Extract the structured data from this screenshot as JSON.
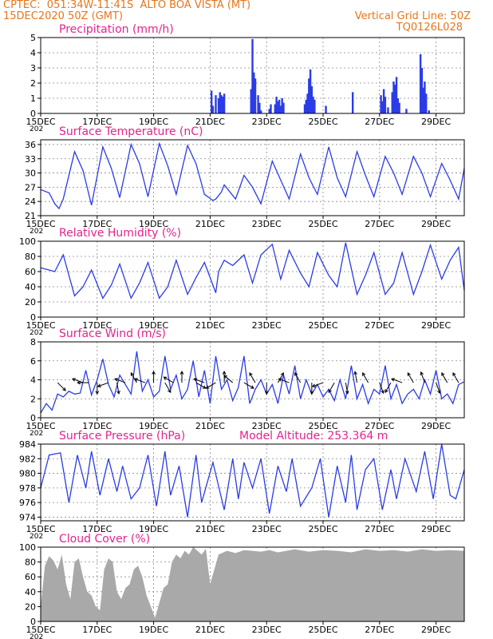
{
  "header": {
    "line1": "CPTEC:  051:34W-11:41S  ALTO BOA VISTA (MT)",
    "line2": "15DEC2020 50Z (GMT)",
    "grid_note": "Vertical Grid Line: 50Z",
    "code": "TQ0126L028",
    "color": "#e8751a"
  },
  "colors": {
    "line": "#2b3ce6",
    "bar": "#2b3ce6",
    "cloud": "#a9a9a9",
    "title": "#e5238b",
    "axis": "#000000"
  },
  "x_axis": {
    "range_days": [
      0,
      15
    ],
    "tick_labels": [
      "15DEC",
      "17DEC",
      "19DEC",
      "21DEC",
      "23DEC",
      "25DEC",
      "27DEC",
      "29DEC"
    ],
    "tick_days": [
      0,
      2,
      4,
      6,
      8,
      10,
      12,
      14
    ],
    "year_fragment": "202"
  },
  "chart_data": [
    {
      "type": "bar",
      "title": "Precipitation (mm/h)",
      "ylim": [
        0,
        5
      ],
      "yticks": [
        "0",
        "1",
        "2",
        "3",
        "4",
        "5"
      ],
      "x_days": [
        6.05,
        6.1,
        6.2,
        6.3,
        6.35,
        6.4,
        6.45,
        6.5,
        7.45,
        7.5,
        7.55,
        7.6,
        7.7,
        7.75,
        7.8,
        8.1,
        8.15,
        8.3,
        8.35,
        8.4,
        8.45,
        8.5,
        8.55,
        8.6,
        9.35,
        9.4,
        9.45,
        9.5,
        9.55,
        9.6,
        9.65,
        9.7,
        10.1,
        11.05,
        12.05,
        12.1,
        12.15,
        12.2,
        12.3,
        12.45,
        12.5,
        12.55,
        12.6,
        12.65,
        12.7,
        12.95,
        13.45,
        13.5,
        13.55,
        13.6,
        13.65,
        13.75
      ],
      "values": [
        1.5,
        0.5,
        1.2,
        1.0,
        1.4,
        1.2,
        1.1,
        1.3,
        1.6,
        4.9,
        2.7,
        2.3,
        1.2,
        0.7,
        0.2,
        0.3,
        0.6,
        0.6,
        1.1,
        0.8,
        0.9,
        0.5,
        1.0,
        0.7,
        0.6,
        0.9,
        1.3,
        2.3,
        2.9,
        1.8,
        1.1,
        0.9,
        0.5,
        1.4,
        1.2,
        0.8,
        1.6,
        1.1,
        0.4,
        1.4,
        2.1,
        1.9,
        2.4,
        1.0,
        0.7,
        0.3,
        3.9,
        3.0,
        1.7,
        2.1,
        1.3,
        0.2
      ]
    },
    {
      "type": "line",
      "title": "Surface Temperature (nC)",
      "ylim": [
        21,
        37
      ],
      "yticks": [
        "21",
        "24",
        "27",
        "30",
        "33",
        "36"
      ],
      "ytick_values": [
        21,
        24,
        27,
        30,
        33,
        36
      ],
      "x_days": [
        0,
        0.3,
        0.5,
        0.65,
        0.8,
        1.2,
        1.5,
        1.8,
        2.2,
        2.5,
        2.8,
        3.2,
        3.5,
        3.8,
        4.2,
        4.5,
        4.8,
        5.2,
        5.5,
        5.8,
        6.1,
        6.2,
        6.4,
        6.5,
        6.7,
        6.9,
        7.2,
        7.5,
        7.8,
        8.2,
        8.5,
        8.8,
        9.2,
        9.5,
        9.8,
        10.2,
        10.5,
        10.8,
        11.2,
        11.5,
        11.8,
        12.2,
        12.5,
        12.8,
        13.2,
        13.5,
        13.8,
        14.2,
        14.5,
        14.8,
        15
      ],
      "values": [
        26.5,
        25.8,
        23.5,
        22.5,
        24.5,
        34.5,
        30.5,
        23.2,
        35.5,
        31,
        24.8,
        36,
        32,
        25,
        36.2,
        31.5,
        25.5,
        35.8,
        32,
        25.5,
        24.2,
        24.5,
        26,
        27.5,
        26,
        24.5,
        29.5,
        27,
        23.5,
        32.5,
        28.5,
        24.5,
        34,
        29,
        25.5,
        35.5,
        29,
        25,
        34.5,
        29.5,
        25,
        33.5,
        30,
        25.5,
        33.5,
        30,
        25,
        32,
        28.5,
        24.5,
        31
      ]
    },
    {
      "type": "line",
      "title": "Relative Humidity (%)",
      "ylim": [
        0,
        100
      ],
      "yticks": [
        "0",
        "20",
        "40",
        "60",
        "80",
        "100"
      ],
      "ytick_values": [
        0,
        20,
        40,
        60,
        80,
        100
      ],
      "x_days": [
        0,
        0.5,
        0.8,
        1.2,
        1.5,
        1.8,
        2.2,
        2.5,
        2.8,
        3.2,
        3.5,
        3.8,
        4.2,
        4.5,
        4.8,
        5.2,
        5.5,
        5.8,
        6.2,
        6.3,
        6.5,
        6.8,
        7.2,
        7.5,
        7.8,
        8.2,
        8.5,
        8.8,
        9.2,
        9.5,
        9.8,
        10.2,
        10.5,
        10.8,
        11.2,
        11.5,
        11.8,
        12.2,
        12.5,
        12.8,
        13.2,
        13.5,
        13.8,
        14.2,
        14.5,
        14.8,
        15
      ],
      "values": [
        65,
        60,
        82,
        28,
        40,
        62,
        25,
        42,
        70,
        25,
        45,
        72,
        25,
        40,
        75,
        30,
        52,
        72,
        32,
        60,
        75,
        68,
        82,
        45,
        82,
        96,
        50,
        88,
        58,
        40,
        85,
        55,
        40,
        98,
        30,
        55,
        85,
        30,
        45,
        85,
        30,
        60,
        95,
        50,
        75,
        92,
        35
      ]
    },
    {
      "type": "line",
      "title": "Surface Wind (m/s)",
      "ylim": [
        0,
        8
      ],
      "yticks": [
        "0",
        "2",
        "4",
        "6",
        "8"
      ],
      "ytick_values": [
        0,
        2,
        4,
        6,
        8
      ],
      "x_days": [
        0,
        0.2,
        0.4,
        0.6,
        0.8,
        1.0,
        1.2,
        1.4,
        1.6,
        1.8,
        2.0,
        2.2,
        2.4,
        2.6,
        2.8,
        3.0,
        3.2,
        3.4,
        3.6,
        3.8,
        4.0,
        4.2,
        4.4,
        4.6,
        4.8,
        5.0,
        5.2,
        5.4,
        5.6,
        5.8,
        6.0,
        6.2,
        6.4,
        6.6,
        6.8,
        7.0,
        7.2,
        7.4,
        7.6,
        7.8,
        8.0,
        8.2,
        8.4,
        8.6,
        8.8,
        9.0,
        9.2,
        9.4,
        9.6,
        9.8,
        10.0,
        10.2,
        10.4,
        10.6,
        10.8,
        11.0,
        11.2,
        11.4,
        11.6,
        11.8,
        12.0,
        12.2,
        12.4,
        12.6,
        12.8,
        13.0,
        13.2,
        13.4,
        13.6,
        13.8,
        14.0,
        14.2,
        14.4,
        14.6,
        14.8,
        15.0
      ],
      "values": [
        0.5,
        1.5,
        0.8,
        2.5,
        2.2,
        2.8,
        2.5,
        2.6,
        5.0,
        2.4,
        4.0,
        6.2,
        3.5,
        2.2,
        4.5,
        3.5,
        2.5,
        7.0,
        2.8,
        4.0,
        2.2,
        2.8,
        6.5,
        3.0,
        4.5,
        2.0,
        3.0,
        6.0,
        2.2,
        5.0,
        1.5,
        6.5,
        3.0,
        4.0,
        1.8,
        3.2,
        6.5,
        1.5,
        3.0,
        4.0,
        2.5,
        3.5,
        1.5,
        4.5,
        2.5,
        5.5,
        2.0,
        4.0,
        2.5,
        3.5,
        2.2,
        3.0,
        1.8,
        4.0,
        2.0,
        5.5,
        2.0,
        3.5,
        1.5,
        3.0,
        2.5,
        5.5,
        2.0,
        3.5,
        1.5,
        2.5,
        3.0,
        2.0,
        4.0,
        2.5,
        5.0,
        2.0,
        2.5,
        1.5,
        3.5,
        3.8
      ]
    },
    {
      "type": "line",
      "title": "Surface Pressure (hPa)",
      "annotation": "Model Altitude: 253.364 m",
      "ylim": [
        973.5,
        984
      ],
      "yticks": [
        "974",
        "976",
        "978",
        "980",
        "982",
        "984"
      ],
      "ytick_values": [
        974,
        976,
        978,
        980,
        982,
        984
      ],
      "x_days": [
        0,
        0.3,
        0.7,
        1.0,
        1.3,
        1.6,
        1.8,
        2.1,
        2.4,
        2.7,
        2.9,
        3.2,
        3.5,
        3.8,
        4.1,
        4.4,
        4.6,
        4.9,
        5.2,
        5.5,
        5.7,
        6.1,
        6.5,
        6.8,
        7.0,
        7.2,
        7.5,
        7.8,
        8.1,
        8.4,
        8.7,
        8.9,
        9.2,
        9.6,
        9.9,
        10.2,
        10.5,
        10.8,
        11.0,
        11.2,
        11.5,
        11.8,
        12.1,
        12.4,
        12.6,
        12.9,
        13.3,
        13.6,
        13.9,
        14.2,
        14.5,
        14.7,
        15
      ],
      "values": [
        978,
        982.5,
        982.8,
        976,
        982.5,
        978,
        983,
        977,
        982,
        977.5,
        981,
        976.5,
        978,
        982.5,
        975.5,
        983,
        977,
        981,
        974,
        982.5,
        976,
        981.5,
        975,
        982,
        976.5,
        981.5,
        978,
        982,
        974.5,
        981,
        977.5,
        982,
        975.5,
        978,
        982,
        974,
        981,
        976,
        982.5,
        975,
        980.5,
        982,
        975,
        980.5,
        976.5,
        982,
        977.5,
        983,
        976.5,
        984,
        977,
        976.5,
        980.5
      ]
    },
    {
      "type": "area",
      "title": "Cloud Cover (%)",
      "ylim": [
        0,
        100
      ],
      "yticks": [
        "0",
        "20",
        "40",
        "60",
        "80",
        "100"
      ],
      "ytick_values": [
        0,
        20,
        40,
        60,
        80,
        100
      ],
      "x_days": [
        0,
        0.15,
        0.3,
        0.45,
        0.6,
        0.75,
        0.9,
        1.05,
        1.2,
        1.35,
        1.5,
        1.65,
        1.8,
        1.95,
        2.1,
        2.25,
        2.4,
        2.55,
        2.7,
        2.85,
        3.0,
        3.15,
        3.3,
        3.45,
        3.6,
        3.75,
        3.9,
        4.05,
        4.2,
        4.35,
        4.5,
        4.65,
        4.8,
        4.95,
        5.1,
        5.25,
        5.4,
        5.55,
        5.7,
        5.85,
        6.0,
        6.3,
        6.6,
        6.9,
        7.2,
        7.5,
        7.8,
        8.1,
        8.4,
        8.7,
        9.0,
        9.5,
        10.0,
        10.5,
        11.0,
        11.5,
        12.0,
        12.5,
        13.0,
        13.5,
        14.0,
        14.5,
        15.0
      ],
      "values": [
        20,
        75,
        88,
        82,
        70,
        90,
        50,
        30,
        80,
        85,
        60,
        40,
        35,
        20,
        15,
        70,
        85,
        80,
        40,
        30,
        45,
        50,
        70,
        75,
        60,
        35,
        20,
        5,
        25,
        45,
        50,
        80,
        90,
        85,
        95,
        90,
        100,
        95,
        90,
        98,
        50,
        90,
        95,
        92,
        96,
        95,
        94,
        96,
        93,
        95,
        97,
        94,
        96,
        95,
        93,
        97,
        95,
        96,
        94,
        97,
        95,
        96,
        95
      ]
    }
  ],
  "wind_arrows": {
    "x_days": [
      0.6,
      1.5,
      1.7,
      2.0,
      2.4,
      2.7,
      3.0,
      3.4,
      3.7,
      4.0,
      4.4,
      4.7,
      5.0,
      5.5,
      5.8,
      6.2,
      6.5,
      6.8,
      7.2,
      7.6,
      8.0,
      8.4,
      8.8,
      9.2,
      9.6,
      10.0,
      10.4,
      10.8,
      11.2,
      11.6,
      12.0,
      12.4,
      12.8,
      13.2,
      13.6,
      14.0,
      14.4,
      14.8
    ],
    "directions_deg": [
      45,
      200,
      180,
      90,
      160,
      80,
      200,
      240,
      200,
      270,
      60,
      210,
      270,
      30,
      200,
      150,
      270,
      220,
      30,
      240,
      90,
      300,
      200,
      240,
      90,
      160,
      120,
      80,
      260,
      240,
      70,
      120,
      200,
      240,
      250,
      70,
      240,
      240
    ],
    "length": 1
  }
}
